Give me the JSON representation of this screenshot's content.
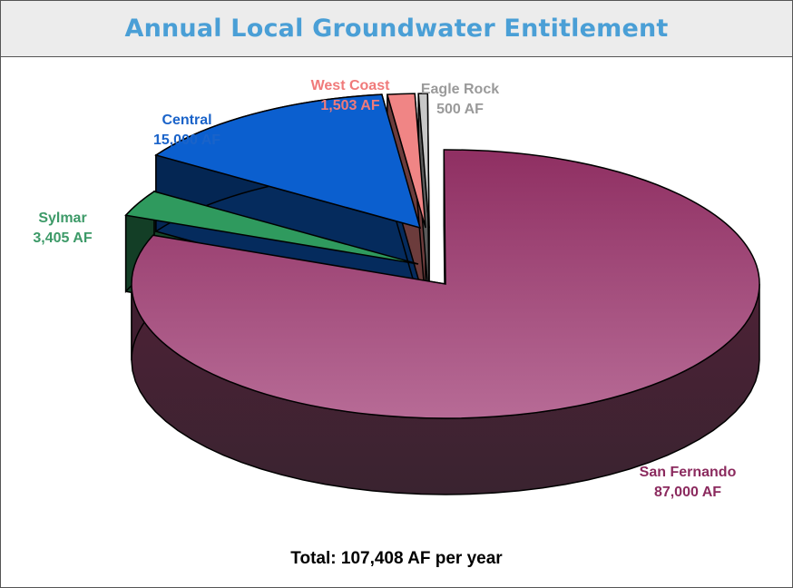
{
  "title": "Annual Local Groundwater Entitlement",
  "total_label": "Total: 107,408 AF per year",
  "chart_data": {
    "type": "pie",
    "title": "Annual Local Groundwater Entitlement",
    "unit": "AF",
    "slices": [
      {
        "name": "San Fernando",
        "value": 87000,
        "value_label": "87,000 AF",
        "color": "#a04b78",
        "label_color": "#8b2a5e"
      },
      {
        "name": "Sylmar",
        "value": 3405,
        "value_label": "3,405 AF",
        "color": "#2f9a5e",
        "label_color": "#3d9a68"
      },
      {
        "name": "Central",
        "value": 15000,
        "value_label": "15,000 AF",
        "color": "#0b5fcf",
        "label_color": "#1a63c9"
      },
      {
        "name": "West Coast",
        "value": 1503,
        "value_label": "1,503 AF",
        "color": "#f08585",
        "label_color": "#f07a7a"
      },
      {
        "name": "Eagle Rock",
        "value": 500,
        "value_label": "500 AF",
        "color": "#c8c8c8",
        "label_color": "#9a9a9a"
      }
    ],
    "total": 107408,
    "exploded": [
      "Sylmar",
      "Central",
      "West Coast",
      "Eagle Rock"
    ],
    "three_d": true
  }
}
